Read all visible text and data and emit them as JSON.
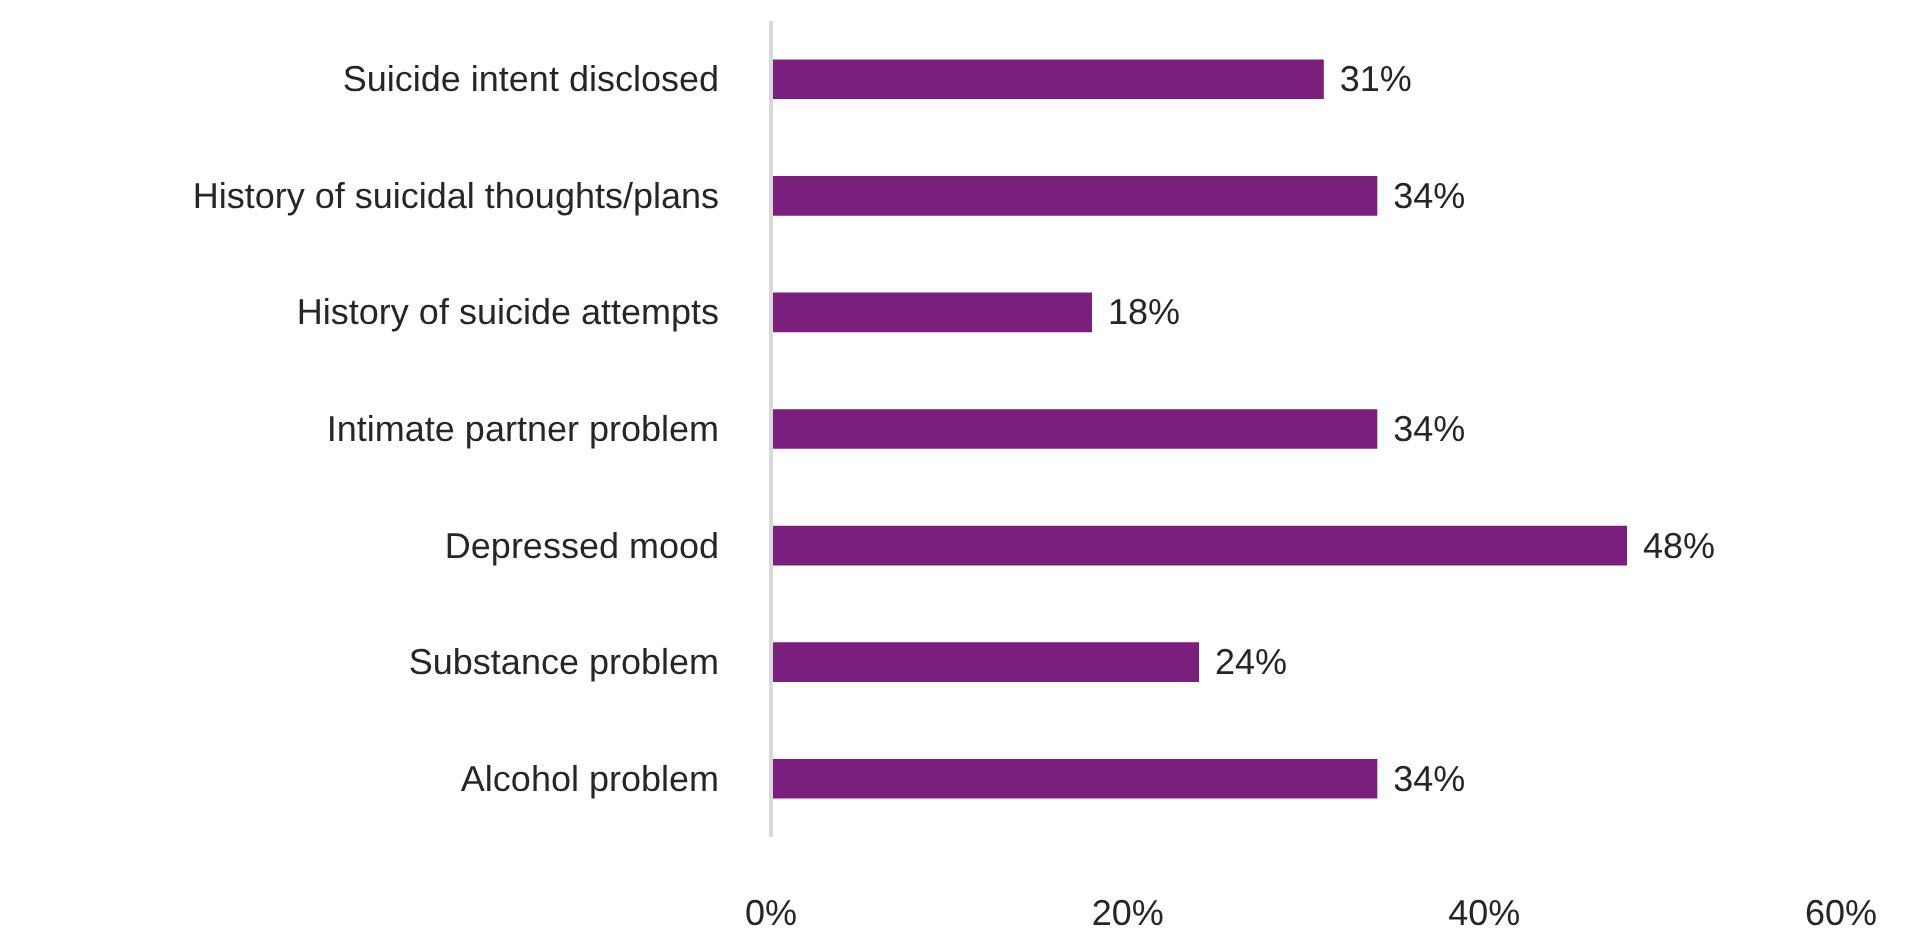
{
  "chart_data": {
    "type": "bar",
    "orientation": "horizontal",
    "categories": [
      "Suicide intent disclosed",
      "History of suicidal thoughts/plans",
      "History of suicide attempts",
      "Intimate partner problem",
      "Depressed mood",
      "Substance problem",
      "Alcohol problem"
    ],
    "values": [
      31,
      34,
      18,
      34,
      48,
      24,
      34
    ],
    "value_labels": [
      "31%",
      "34%",
      "18%",
      "34%",
      "48%",
      "24%",
      "34%"
    ],
    "color": "#7b1f7c",
    "xlim": [
      0,
      60
    ],
    "xticks": [
      {
        "value": 0,
        "label": "0%"
      },
      {
        "value": 20,
        "label": "20%"
      },
      {
        "value": 40,
        "label": "40%"
      },
      {
        "value": 60,
        "label": "60%"
      }
    ],
    "grid": false
  }
}
